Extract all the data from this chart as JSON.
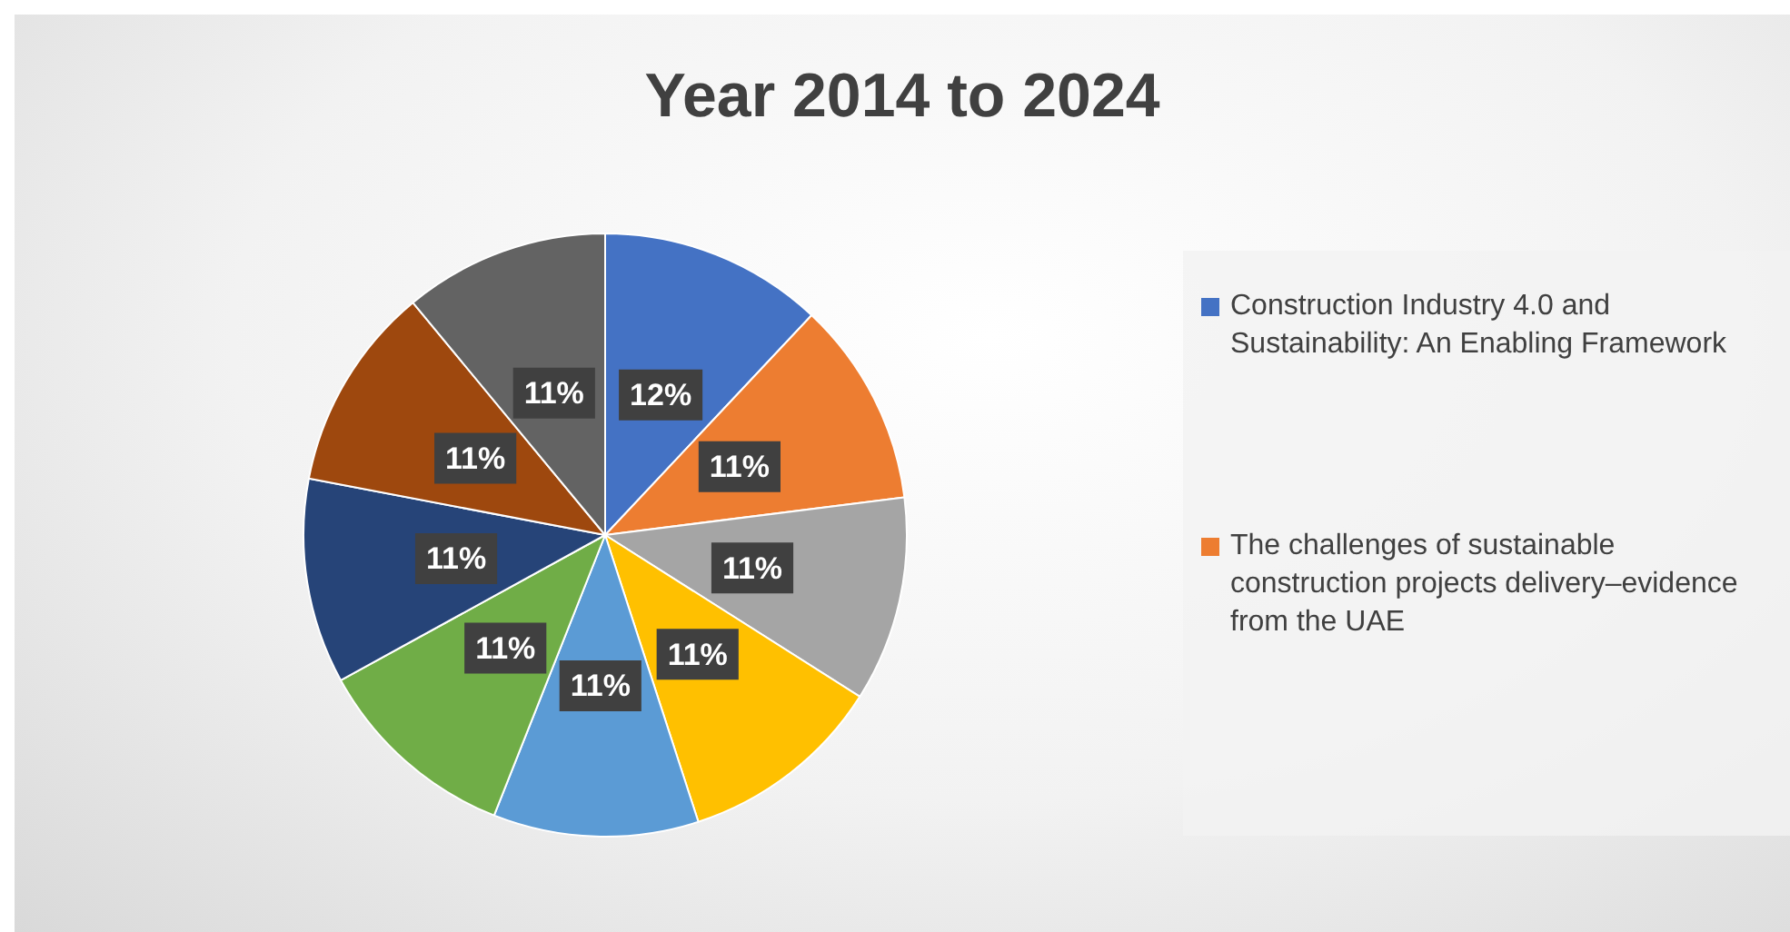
{
  "chart_data": {
    "type": "pie",
    "title": "Year 2014 to 2024",
    "categories": [
      "Construction Industry 4.0 and Sustainability: An Enabling Framework",
      "The challenges of sustainable construction projects delivery–evidence from the UAE",
      null,
      null,
      null,
      null,
      null,
      null,
      null
    ],
    "values": [
      12,
      11,
      11,
      11,
      11,
      11,
      11,
      11,
      11
    ],
    "colors": [
      "#4472c4",
      "#ed7d31",
      "#a5a5a5",
      "#ffc000",
      "#5b9bd5",
      "#70ad47",
      "#264478",
      "#9e480e",
      "#636363"
    ],
    "value_labels": [
      "12%",
      "11%",
      "11%",
      "11%",
      "11%",
      "11%",
      "11%",
      "11%",
      "11%"
    ],
    "legend": "right"
  }
}
